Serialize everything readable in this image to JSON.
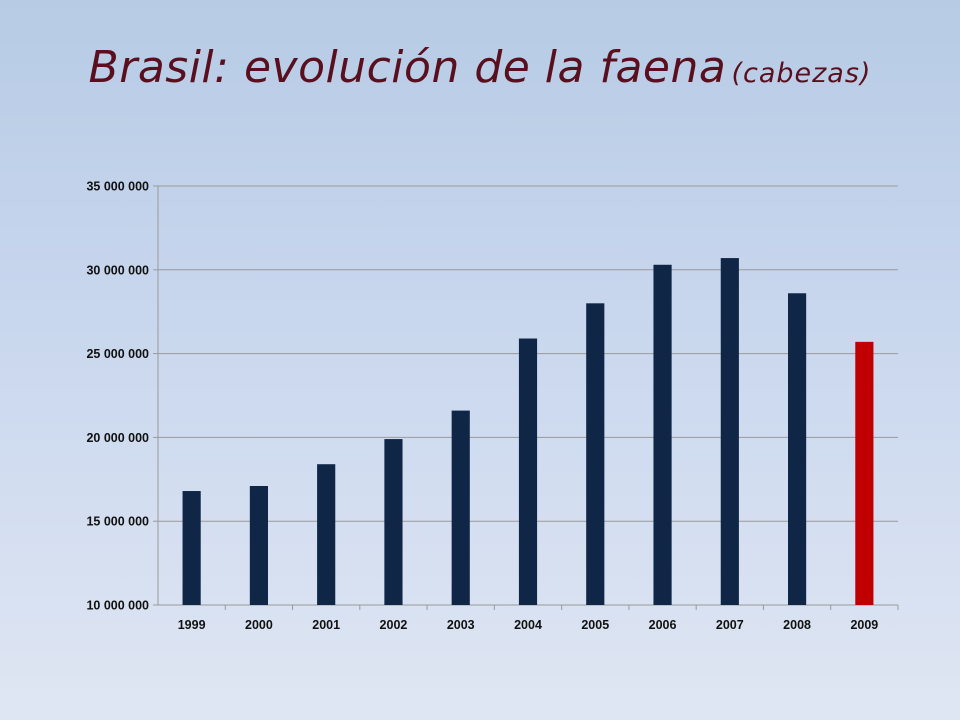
{
  "slide": {
    "title": "Brasil:  evolución de la faena",
    "subtitle": "(cabezas)"
  },
  "colors": {
    "bar": "#0f2647",
    "highlight_bar": "#c00000",
    "grid": "#9a9a9a",
    "title": "#5a0f1e"
  },
  "chart_data": {
    "type": "bar",
    "categories": [
      "1999",
      "2000",
      "2001",
      "2002",
      "2003",
      "2004",
      "2005",
      "2006",
      "2007",
      "2008",
      "2009"
    ],
    "values": [
      16800000,
      17100000,
      18400000,
      19900000,
      21600000,
      25900000,
      28000000,
      30300000,
      30700000,
      28600000,
      25700000
    ],
    "highlight_category": "2009",
    "ylim": [
      10000000,
      35000000
    ],
    "yticks": [
      10000000,
      15000000,
      20000000,
      25000000,
      30000000,
      35000000
    ],
    "ytick_labels": [
      "10 000 000",
      "15 000 000",
      "20 000 000",
      "25 000 000",
      "30 000 000",
      "35 000 000"
    ],
    "grid": true,
    "legend": "none",
    "xlabel": "",
    "ylabel": ""
  }
}
